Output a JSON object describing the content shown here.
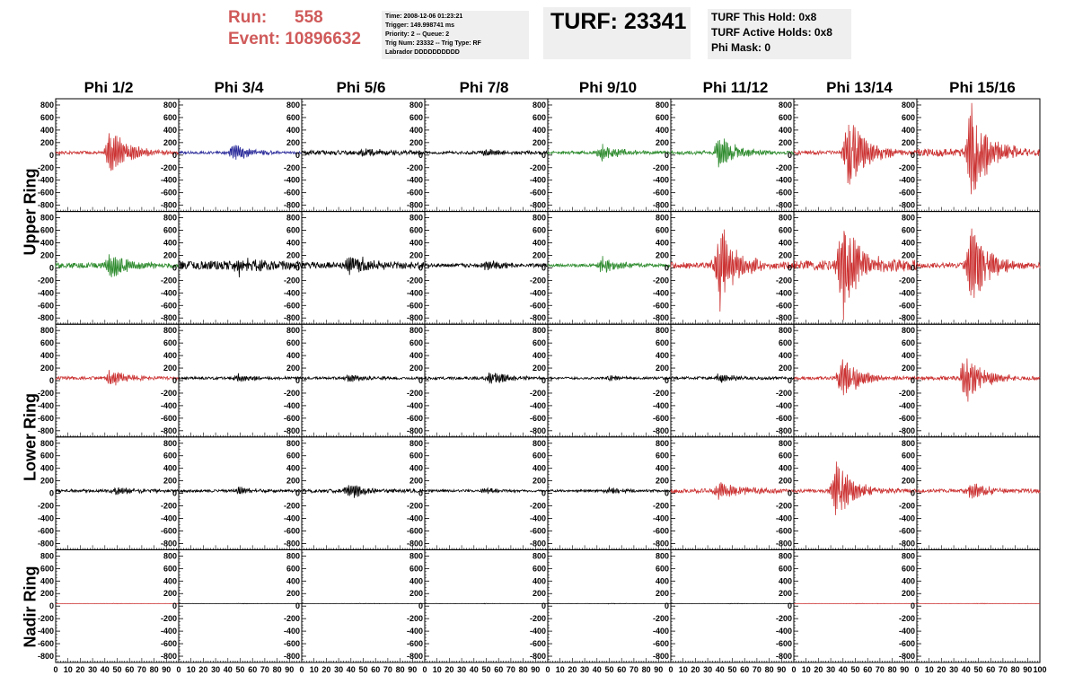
{
  "header": {
    "run_label": "Run:",
    "run_value": "558",
    "event_label": "Event:",
    "event_value": "10896632",
    "info": {
      "time": "Time: 2008-12-06 01:23:21",
      "trigger": "Trigger: 149.998741 ms",
      "priority": "Priority: 2 -- Queue: 2",
      "trig_num": "Trig Num: 23332 -- Trig Type: RF",
      "labrador": "Labrador DDDDDDDDDD"
    },
    "turf_title": "TURF: 23341",
    "turf_this_hold": "TURF This Hold: 0x8",
    "turf_active_holds": "TURF Active Holds: 0x8",
    "phi_mask": "Phi Mask: 0"
  },
  "colors": {
    "red": "#cc3333",
    "green": "#2e8b2e",
    "blue": "#2a2a9a",
    "black": "#000000",
    "header_red": "#d05a5a",
    "box_bg": "#efefef"
  },
  "chart_data": {
    "type": "line",
    "columns": [
      "Phi 1/2",
      "Phi 3/4",
      "Phi 5/6",
      "Phi 7/8",
      "Phi 9/10",
      "Phi 11/12",
      "Phi 13/14",
      "Phi 15/16"
    ],
    "rings": [
      "Upper Ring",
      "Lower Ring",
      "Nadir Ring"
    ],
    "xlim": [
      0,
      100
    ],
    "ylim": [
      -900,
      900
    ],
    "x_ticks": [
      0,
      10,
      20,
      30,
      40,
      50,
      60,
      70,
      80,
      90,
      100
    ],
    "x_tick_labels": [
      "0",
      "10",
      "20",
      "30",
      "40",
      "50",
      "60",
      "70",
      "80",
      "90",
      "100"
    ],
    "y_ticks": [
      -800,
      -600,
      -400,
      -200,
      0,
      200,
      400,
      600,
      800
    ],
    "y_tick_labels": [
      "-800",
      "-600",
      "-400",
      "-200",
      "0",
      "200",
      "400",
      "600",
      "800"
    ],
    "panels": [
      [
        {
          "color": "red",
          "peak": 450,
          "center": 45,
          "noise": 25
        },
        {
          "color": "blue",
          "peak": 160,
          "center": 45,
          "noise": 20
        },
        {
          "color": "black",
          "peak": 80,
          "center": 50,
          "noise": 35
        },
        {
          "color": "black",
          "peak": 60,
          "center": 50,
          "noise": 25
        },
        {
          "color": "green",
          "peak": 150,
          "center": 45,
          "noise": 25
        },
        {
          "color": "green",
          "peak": 280,
          "center": 40,
          "noise": 30
        },
        {
          "color": "red",
          "peak": 650,
          "center": 45,
          "noise": 30
        },
        {
          "color": "red",
          "peak": 820,
          "center": 45,
          "noise": 60
        }
      ],
      [
        {
          "color": "green",
          "peak": 220,
          "center": 45,
          "noise": 40
        },
        {
          "color": "black",
          "peak": 150,
          "center": 50,
          "noise": 70
        },
        {
          "color": "black",
          "peak": 180,
          "center": 40,
          "noise": 55
        },
        {
          "color": "black",
          "peak": 90,
          "center": 50,
          "noise": 30
        },
        {
          "color": "green",
          "peak": 150,
          "center": 45,
          "noise": 25
        },
        {
          "color": "red",
          "peak": 700,
          "center": 40,
          "noise": 50
        },
        {
          "color": "red",
          "peak": 900,
          "center": 40,
          "noise": 80
        },
        {
          "color": "red",
          "peak": 720,
          "center": 45,
          "noise": 40
        }
      ],
      [
        {
          "color": "red",
          "peak": 150,
          "center": 45,
          "noise": 25
        },
        {
          "color": "black",
          "peak": 70,
          "center": 50,
          "noise": 20
        },
        {
          "color": "black",
          "peak": 70,
          "center": 40,
          "noise": 20
        },
        {
          "color": "black",
          "peak": 110,
          "center": 55,
          "noise": 22
        },
        {
          "color": "black",
          "peak": 50,
          "center": 50,
          "noise": 18
        },
        {
          "color": "black",
          "peak": 70,
          "center": 40,
          "noise": 22
        },
        {
          "color": "red",
          "peak": 380,
          "center": 40,
          "noise": 25
        },
        {
          "color": "red",
          "peak": 420,
          "center": 40,
          "noise": 30
        }
      ],
      [
        {
          "color": "black",
          "peak": 70,
          "center": 50,
          "noise": 25
        },
        {
          "color": "black",
          "peak": 60,
          "center": 50,
          "noise": 22
        },
        {
          "color": "black",
          "peak": 130,
          "center": 40,
          "noise": 30
        },
        {
          "color": "black",
          "peak": 50,
          "center": 50,
          "noise": 18
        },
        {
          "color": "black",
          "peak": 50,
          "center": 50,
          "noise": 18
        },
        {
          "color": "red",
          "peak": 180,
          "center": 40,
          "noise": 35
        },
        {
          "color": "red",
          "peak": 500,
          "center": 35,
          "noise": 30
        },
        {
          "color": "red",
          "peak": 170,
          "center": 45,
          "noise": 30
        }
      ],
      [
        {
          "color": "red",
          "peak": 4,
          "center": 50,
          "noise": 2
        },
        {
          "color": "black",
          "peak": 4,
          "center": 50,
          "noise": 2
        },
        {
          "color": "black",
          "peak": 4,
          "center": 50,
          "noise": 2
        },
        {
          "color": "black",
          "peak": 4,
          "center": 50,
          "noise": 2
        },
        {
          "color": "black",
          "peak": 4,
          "center": 50,
          "noise": 2
        },
        {
          "color": "black",
          "peak": 4,
          "center": 50,
          "noise": 2
        },
        {
          "color": "red",
          "peak": 4,
          "center": 50,
          "noise": 2
        },
        {
          "color": "red",
          "peak": 4,
          "center": 50,
          "noise": 2
        }
      ]
    ]
  }
}
